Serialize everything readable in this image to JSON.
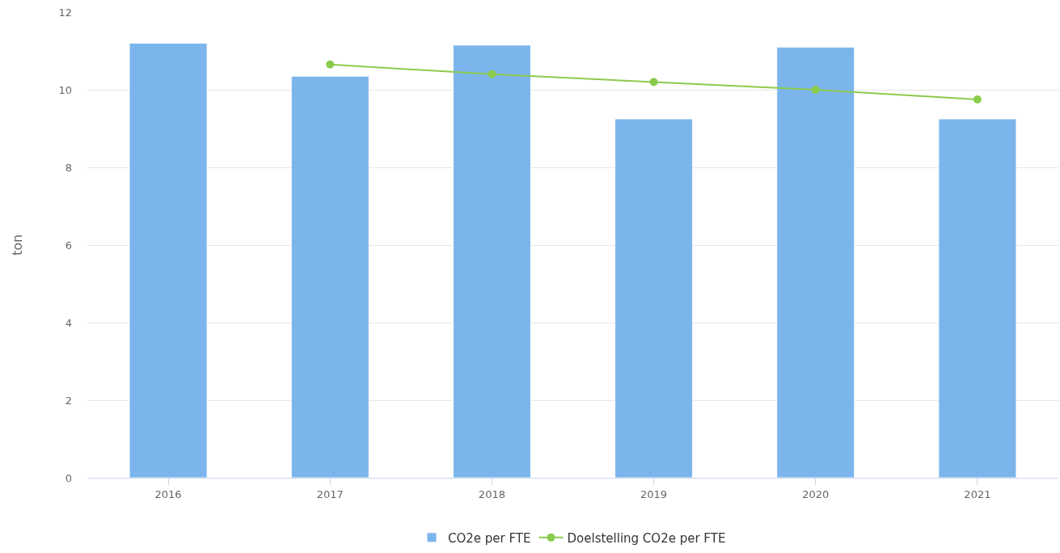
{
  "chart_data": {
    "type": "bar",
    "ylabel": "ton",
    "categories": [
      "2016",
      "2017",
      "2018",
      "2019",
      "2020",
      "2021"
    ],
    "series": [
      {
        "name": "CO2e per FTE",
        "color": "#7cb5ec",
        "values": [
          11.2,
          10.35,
          11.15,
          9.25,
          11.1,
          9.25
        ]
      },
      {
        "name": "Doelstelling CO2e per FTE",
        "type": "line",
        "color": "#8bcb4c",
        "marker": "circle",
        "values": [
          null,
          10.65,
          10.4,
          10.2,
          10.0,
          9.75
        ]
      }
    ],
    "ylim": [
      0,
      12
    ],
    "yticks": [
      0,
      2,
      4,
      6,
      8,
      10,
      12
    ],
    "grid": "y",
    "legend": "bottom"
  }
}
